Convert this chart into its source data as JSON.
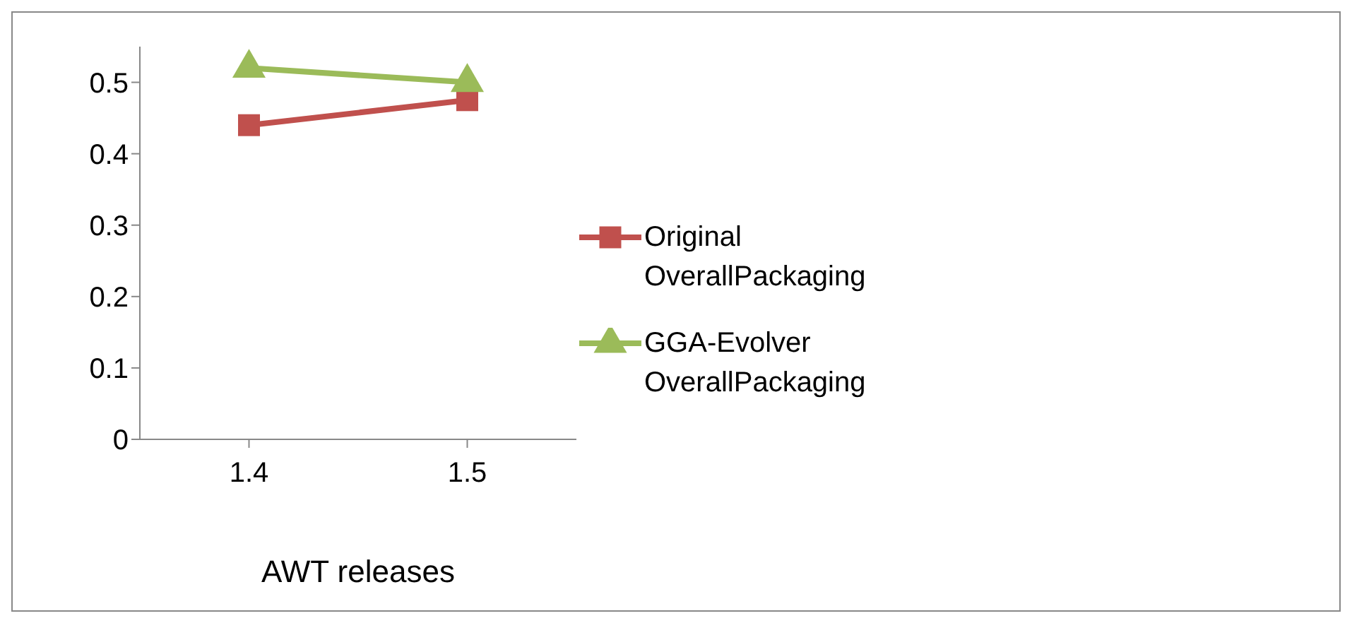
{
  "chart_data": {
    "type": "line",
    "xlabel": "AWT releases",
    "x": [
      1.4,
      1.5
    ],
    "xlim": [
      1.35,
      1.55
    ],
    "xticks": [
      1.4,
      1.5
    ],
    "series": [
      {
        "name": "Original OverallPackaging",
        "color": "#c0504d",
        "values": [
          0.44,
          0.475
        ],
        "marker": "square"
      },
      {
        "name": "GGA-Evolver OverallPackaging",
        "color": "#9bbb59",
        "values": [
          0.52,
          0.5
        ],
        "marker": "triangle"
      }
    ],
    "ylim": [
      0,
      0.55
    ],
    "yticks": [
      0,
      0.1,
      0.2,
      0.3,
      0.4,
      0.5
    ],
    "grid": false,
    "legend": "right",
    "line_style": "solid"
  }
}
